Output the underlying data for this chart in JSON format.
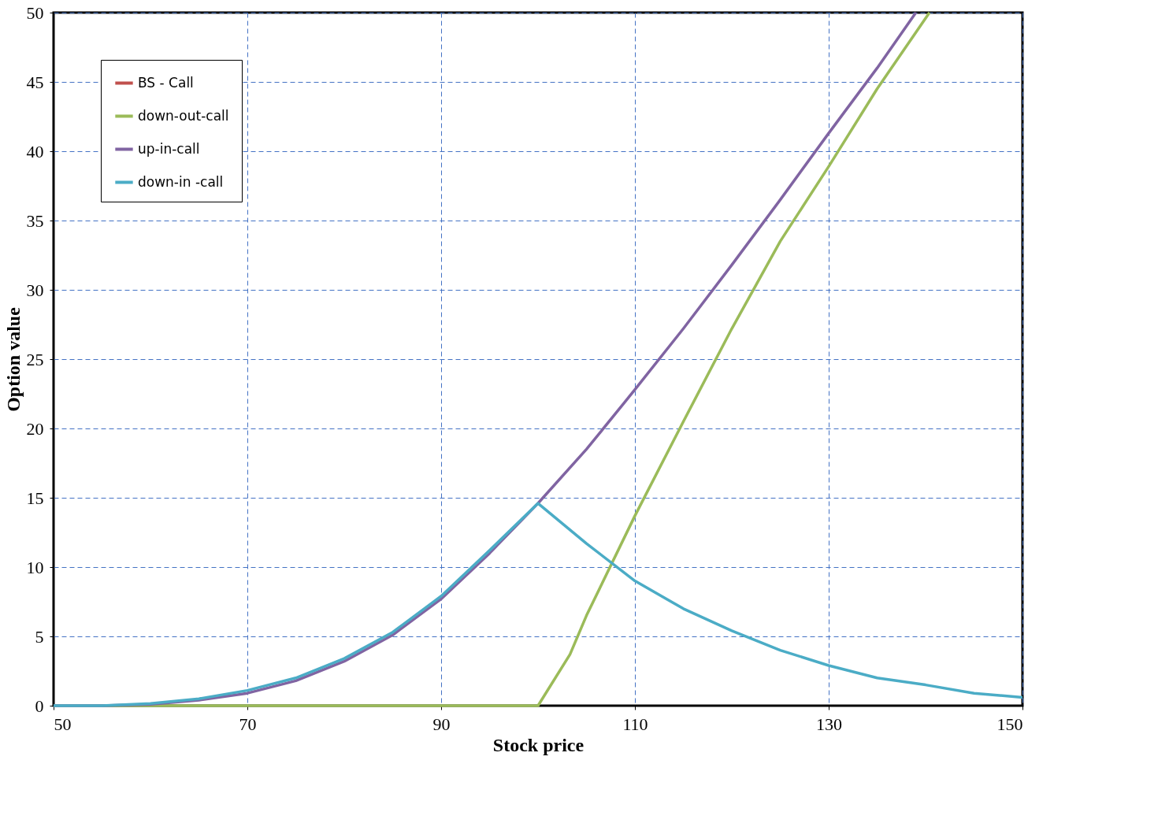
{
  "chart_data": {
    "type": "line",
    "xlabel": "Stock price",
    "ylabel": "Option value",
    "xlim": [
      50,
      150
    ],
    "ylim": [
      0,
      50
    ],
    "xticks": [
      50,
      70,
      90,
      110,
      130,
      150
    ],
    "yticks": [
      0,
      5,
      10,
      15,
      20,
      25,
      30,
      35,
      40,
      45,
      50
    ],
    "grid": true,
    "legend": "top left",
    "marker": "none",
    "line_style": "solid",
    "series": [
      {
        "name": "BS - Call",
        "color": "#c0504d"
      },
      {
        "name": "down-out-call",
        "color": "#9bbb59",
        "x": [
          50,
          60,
          70,
          80,
          90,
          100,
          103.3,
          105,
          110,
          115,
          120,
          125,
          130,
          135,
          140.4
        ],
        "values": [
          0,
          0,
          0,
          0,
          0,
          0,
          3.7,
          6.5,
          13.7,
          20.5,
          27.2,
          33.5,
          38.9,
          44.5,
          50
        ]
      },
      {
        "name": "up-in-call",
        "color": "#8064a2",
        "x": [
          50,
          55,
          60,
          65,
          70,
          75,
          80,
          85,
          90,
          95,
          100,
          105,
          110,
          115,
          120,
          125,
          130,
          135,
          139
        ],
        "values": [
          0,
          0,
          0.1,
          0.4,
          0.9,
          1.8,
          3.2,
          5.1,
          7.7,
          11.0,
          14.6,
          18.5,
          22.8,
          27.2,
          31.8,
          36.5,
          41.3,
          46.0,
          50
        ]
      },
      {
        "name": "down-in -call",
        "color": "#4bacc6",
        "x": [
          50,
          55,
          60,
          65,
          70,
          75,
          80,
          85,
          90,
          95,
          100,
          105,
          110,
          115,
          120,
          125,
          130,
          135,
          140,
          145,
          150
        ],
        "values": [
          0,
          0,
          0.15,
          0.5,
          1.1,
          2.0,
          3.4,
          5.3,
          7.9,
          11.2,
          14.6,
          11.7,
          9.0,
          7.0,
          5.4,
          4.0,
          2.9,
          2.0,
          1.5,
          0.9,
          0.6
        ]
      }
    ]
  }
}
